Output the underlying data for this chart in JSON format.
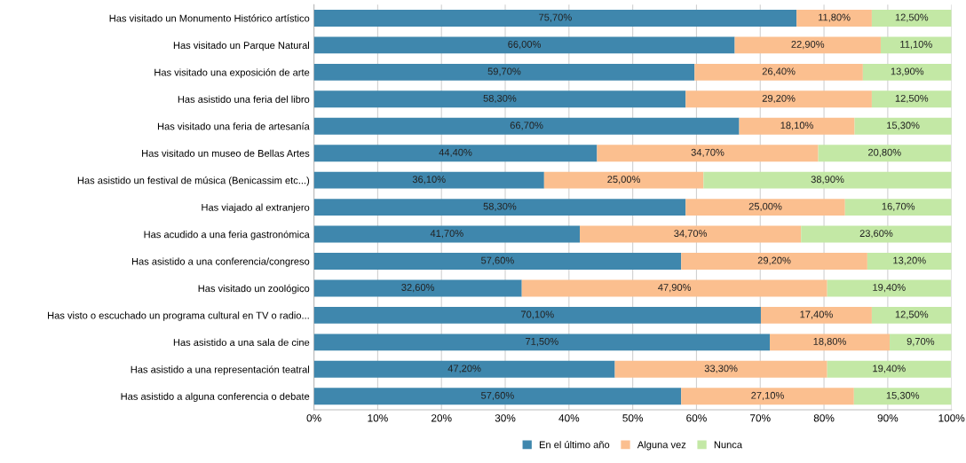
{
  "chart_data": {
    "type": "bar",
    "orientation": "horizontal",
    "stacked": true,
    "categories": [
      "Has visitado un Monumento Histórico artístico",
      "Has visitado un Parque Natural",
      "Has visitado una exposición de arte",
      "Has asistido una feria del libro",
      "Has visitado una feria de artesanía",
      "Has visitado un museo de Bellas Artes",
      "Has asistido un festival de música (Benicassim etc...)",
      "Has viajado al extranjero",
      "Has acudido a una feria gastronómica",
      "Has asistido a una conferencia/congreso",
      "Has visitado un zoológico",
      "Has visto o escuchado un programa cultural en TV o radio...",
      "Has asistido a una sala de cine",
      "Has asistido a una representación teatral",
      "Has asistido a alguna conferencia o debate"
    ],
    "series": [
      {
        "name": "En el último año",
        "color": "#3f87ad",
        "values": [
          75.7,
          66.0,
          59.7,
          58.3,
          66.7,
          44.4,
          36.1,
          58.3,
          41.7,
          57.6,
          32.6,
          70.1,
          71.5,
          47.2,
          57.6
        ],
        "value_labels": [
          "75,70%",
          "66,00%",
          "59,70%",
          "58,30%",
          "66,70%",
          "44,40%",
          "36,10%",
          "58,30%",
          "41,70%",
          "57,60%",
          "32,60%",
          "70,10%",
          "71,50%",
          "47,20%",
          "57,60%"
        ]
      },
      {
        "name": "Alguna vez",
        "color": "#fbbf8f",
        "values": [
          11.8,
          22.9,
          26.4,
          29.2,
          18.1,
          34.7,
          25.0,
          25.0,
          34.7,
          29.2,
          47.9,
          17.4,
          18.8,
          33.3,
          27.1
        ],
        "value_labels": [
          "11,80%",
          "22,90%",
          "26,40%",
          "29,20%",
          "18,10%",
          "34,70%",
          "25,00%",
          "25,00%",
          "34,70%",
          "29,20%",
          "47,90%",
          "17,40%",
          "18,80%",
          "33,30%",
          "27,10%"
        ]
      },
      {
        "name": "Nunca",
        "color": "#c3e8a5",
        "values": [
          12.5,
          11.1,
          13.9,
          12.5,
          15.3,
          20.8,
          38.9,
          16.7,
          23.6,
          13.2,
          19.4,
          12.5,
          9.7,
          19.4,
          15.3
        ],
        "value_labels": [
          "12,50%",
          "11,10%",
          "13,90%",
          "12,50%",
          "15,30%",
          "20,80%",
          "38,90%",
          "16,70%",
          "23,60%",
          "13,20%",
          "19,40%",
          "12,50%",
          "9,70%",
          "19,40%",
          "15,30%"
        ]
      }
    ],
    "xlim": [
      0,
      100
    ],
    "xticks": [
      {
        "value": 0,
        "label": "0%"
      },
      {
        "value": 10,
        "label": "10%"
      },
      {
        "value": 20,
        "label": "20%"
      },
      {
        "value": 30,
        "label": "30%"
      },
      {
        "value": 40,
        "label": "40%"
      },
      {
        "value": 50,
        "label": "50%"
      },
      {
        "value": 60,
        "label": "60%"
      },
      {
        "value": 70,
        "label": "70%"
      },
      {
        "value": 80,
        "label": "80%"
      },
      {
        "value": 90,
        "label": "90%"
      },
      {
        "value": 100,
        "label": "100%"
      }
    ],
    "grid": "x",
    "legend": "bottom"
  }
}
